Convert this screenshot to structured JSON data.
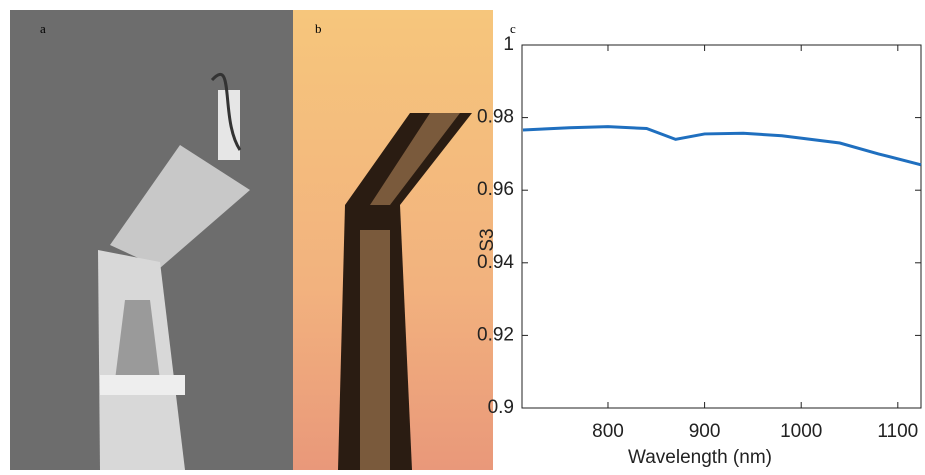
{
  "panel_labels": [
    "a",
    "b",
    "c"
  ],
  "chart_data": {
    "type": "line",
    "x_label": "Wavelength (nm)",
    "y_label": "S3",
    "x": [
      712,
      760,
      800,
      840,
      870,
      900,
      940,
      980,
      1040,
      1080,
      1124
    ],
    "series": [
      {
        "name": "S3",
        "color": "#1f6fbf",
        "values": [
          0.9766,
          0.9772,
          0.9775,
          0.977,
          0.974,
          0.9755,
          0.9757,
          0.975,
          0.973,
          0.97,
          0.967
        ]
      }
    ],
    "xlim": [
      711,
      1124
    ],
    "ylim": [
      0.9,
      1
    ],
    "xticks": [
      800,
      900,
      1000,
      1100
    ],
    "yticks": [
      0.9,
      0.92,
      0.94,
      0.96,
      0.98,
      1
    ]
  }
}
